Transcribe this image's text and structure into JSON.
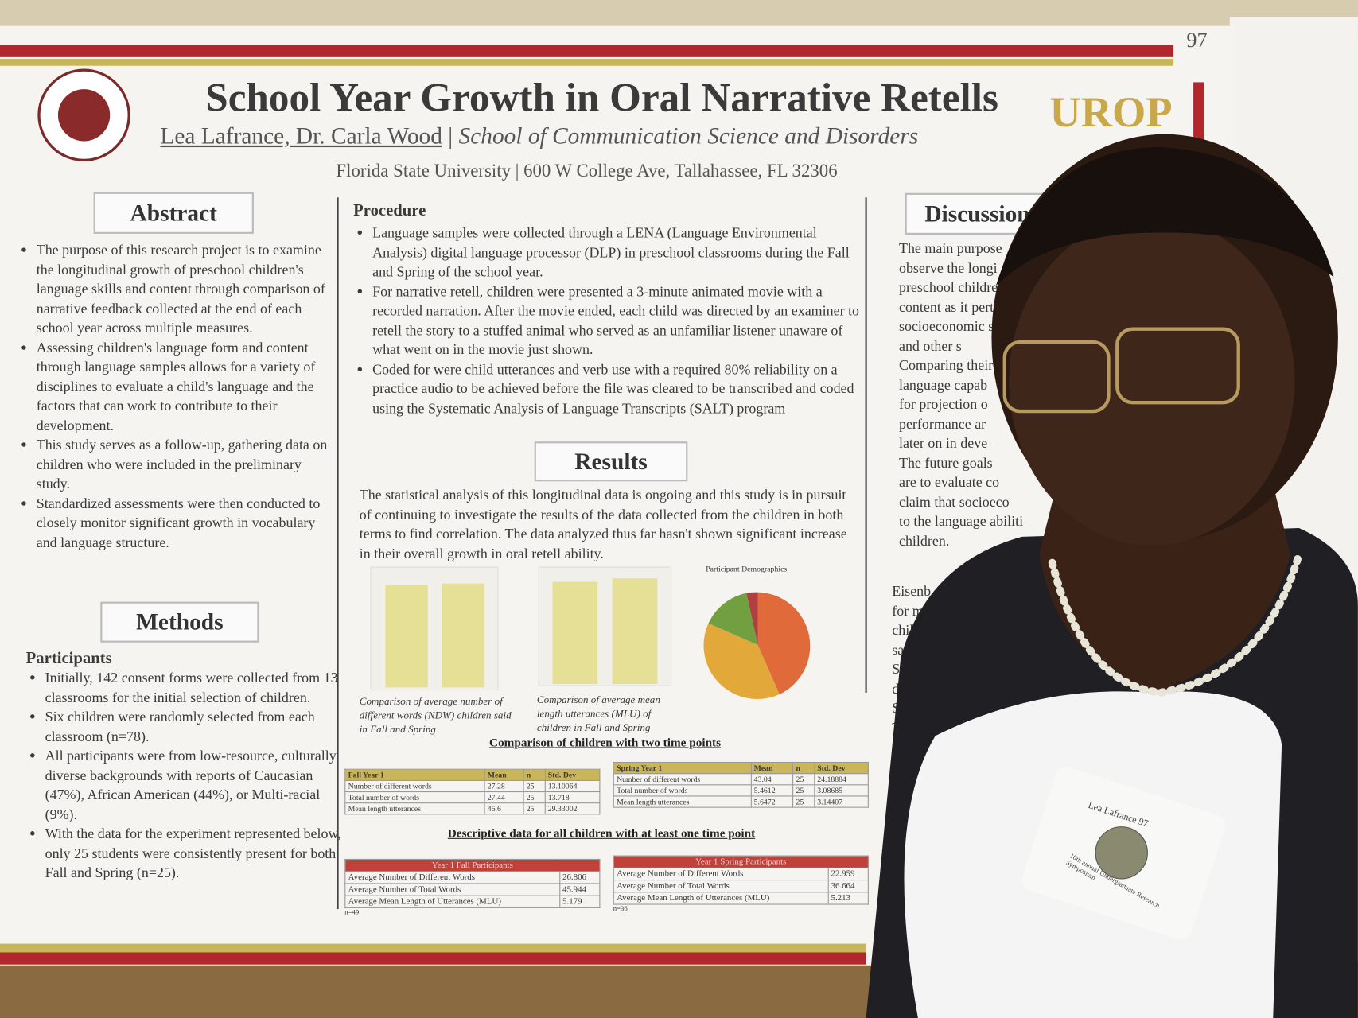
{
  "header": {
    "title": "School Year Growth in Oral Narrative Retells",
    "authors": "Lea Lafrance, Dr. Carla Wood",
    "department": "School of Communication Science and Disorders",
    "address": "Florida State University | 600 W College Ave, Tallahassee, FL 32306",
    "logo_text": "UROP",
    "poster_number": "97"
  },
  "abstract": {
    "heading": "Abstract",
    "bullets": [
      "The purpose of this research project is to examine the longitudinal growth of preschool children's language skills and content through comparison of narrative feedback collected at the end of each school year across multiple measures.",
      "Assessing children's language form and content through language samples allows for a variety of disciplines to evaluate a child's language and the factors that can work to contribute to their development.",
      "This study serves as a follow-up, gathering data on children who were included in the preliminary study.",
      "Standardized assessments were then conducted to closely monitor significant growth in vocabulary and language structure."
    ]
  },
  "methods": {
    "heading": "Methods",
    "subheading": "Participants",
    "bullets": [
      "Initially, 142 consent forms were collected from 13 classrooms for the initial selection of children.",
      "Six children were randomly selected from each classroom (n=78).",
      "All participants were from low-resource, culturally diverse backgrounds with reports of Caucasian (47%), African American (44%), or Multi-racial (9%).",
      "With the data for the experiment represented below, only 25 students were consistently present for both Fall and Spring (n=25)."
    ]
  },
  "procedure": {
    "heading": "Procedure",
    "bullets": [
      "Language samples were collected through a LENA (Language Environmental Analysis) digital language processor (DLP) in preschool classrooms during the Fall and Spring of the school year.",
      "For narrative retell, children were presented a 3-minute animated movie with a recorded narration. After the movie ended, each child was directed by an examiner to retell the story to a stuffed animal who served as an unfamiliar listener unaware of what went on in the movie just shown.",
      "Coded for were child utterances and verb use with a required 80% reliability on a practice audio to be achieved before the file was cleared to be transcribed and coded using the Systematic Analysis of Language Transcripts (SALT) program"
    ]
  },
  "results": {
    "heading": "Results",
    "paragraph": "The statistical analysis of this longitudinal data is ongoing and this study is in pursuit of continuing to investigate the results of the data collected from the children in both terms to find correlation. The data analyzed thus far hasn't shown significant increase in their overall growth in oral retell ability.",
    "captions": [
      "Comparison of average number of different words (NDW) children said in Fall and Spring",
      "Comparison of average mean length utterances (MLU) of children in Fall and Spring"
    ],
    "pie_title": "Participant Demographics",
    "comparison_title": "Comparison of children with two time points",
    "comparison_tables": [
      {
        "header": [
          "Fall Year 1",
          "Mean",
          "n",
          "Std. Dev"
        ],
        "rows": [
          [
            "Number of different words",
            "27.28",
            "25",
            "13.10064"
          ],
          [
            "Total number of words",
            "27.44",
            "25",
            "13.718"
          ],
          [
            "Mean length utterances",
            "46.6",
            "25",
            "29.33002"
          ]
        ]
      },
      {
        "header": [
          "Spring Year 1",
          "Mean",
          "n",
          "Std. Dev"
        ],
        "rows": [
          [
            "Number of different words",
            "43.04",
            "25",
            "24.18884"
          ],
          [
            "Total number of words",
            "5.4612",
            "25",
            "3.08685"
          ],
          [
            "Mean length utterances",
            "5.6472",
            "25",
            "3.14407"
          ]
        ]
      }
    ],
    "descriptive_title": "Descriptive data for all children with at least one time point",
    "descriptive_tables": [
      {
        "header": "Year 1 Fall Participants",
        "rows": [
          [
            "Average Number of Different Words",
            "26.806"
          ],
          [
            "Average Number of Total Words",
            "45.944"
          ],
          [
            "Average Mean Length of Utterances (MLU)",
            "5.179"
          ]
        ],
        "note": "n=49"
      },
      {
        "header": "Year 1 Spring Participants",
        "rows": [
          [
            "Average Number of Different Words",
            "22.959"
          ],
          [
            "Average Number of Total Words",
            "36.664"
          ],
          [
            "Average Mean Length of Utterances (MLU)",
            "5.213"
          ]
        ],
        "note": "n=36"
      }
    ]
  },
  "discussion": {
    "heading": "Discussion/C",
    "lines": [
      "The main purpose",
      "observe the longi",
      "preschool childre",
      "content as it perta",
      "socioeconomic st",
      "and other s",
      "Comparing their",
      "language capab",
      "for projection o",
      "performance ar",
      "later on in deve",
      "The future goals",
      "are to evaluate co",
      "claim that socioeco",
      "to the language abiliti",
      "children."
    ]
  },
  "references": {
    "lines": [
      "Eisenb",
      "for m",
      "childr",
      "samp",
      "Serv",
      "doi:",
      "Ser",
      "Th"
    ]
  },
  "name_tag": {
    "name": "Lea Lafrance 97",
    "event": "10th annual Undergraduate Research Symposium"
  }
}
